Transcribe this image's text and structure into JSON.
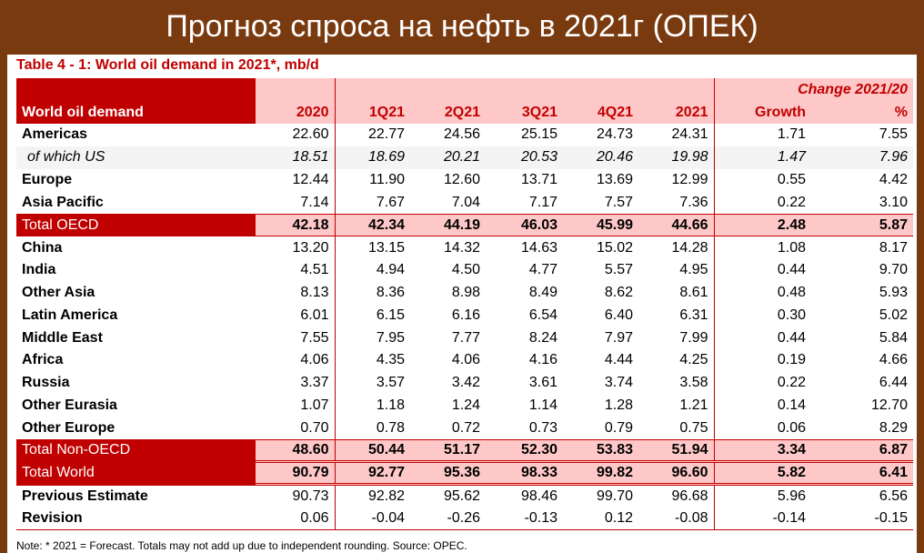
{
  "banner": {
    "title": "Прогноз спроса на нефть в 2021г (ОПЕК)"
  },
  "table_title": "Table 4 - 1: World oil demand in 2021*, mb/d",
  "header": {
    "row_label": "World oil demand",
    "change_label": "Change 2021/20",
    "columns": [
      "2020",
      "1Q21",
      "2Q21",
      "3Q21",
      "4Q21",
      "2021",
      "Growth",
      "%"
    ]
  },
  "rows": [
    {
      "label": "Americas",
      "values": [
        "22.60",
        "22.77",
        "24.56",
        "25.15",
        "24.73",
        "24.31",
        "1.71",
        "7.55"
      ]
    },
    {
      "label": "of which US",
      "values": [
        "18.51",
        "18.69",
        "20.21",
        "20.53",
        "20.46",
        "19.98",
        "1.47",
        "7.96"
      ]
    },
    {
      "label": "Europe",
      "values": [
        "12.44",
        "11.90",
        "12.60",
        "13.71",
        "13.69",
        "12.99",
        "0.55",
        "4.42"
      ]
    },
    {
      "label": "Asia Pacific",
      "values": [
        "7.14",
        "7.67",
        "7.04",
        "7.17",
        "7.57",
        "7.36",
        "0.22",
        "3.10"
      ]
    },
    {
      "label": "Total OECD",
      "values": [
        "42.18",
        "42.34",
        "44.19",
        "46.03",
        "45.99",
        "44.66",
        "2.48",
        "5.87"
      ]
    },
    {
      "label": "China",
      "values": [
        "13.20",
        "13.15",
        "14.32",
        "14.63",
        "15.02",
        "14.28",
        "1.08",
        "8.17"
      ]
    },
    {
      "label": "India",
      "values": [
        "4.51",
        "4.94",
        "4.50",
        "4.77",
        "5.57",
        "4.95",
        "0.44",
        "9.70"
      ]
    },
    {
      "label": "Other Asia",
      "values": [
        "8.13",
        "8.36",
        "8.98",
        "8.49",
        "8.62",
        "8.61",
        "0.48",
        "5.93"
      ]
    },
    {
      "label": "Latin America",
      "values": [
        "6.01",
        "6.15",
        "6.16",
        "6.54",
        "6.40",
        "6.31",
        "0.30",
        "5.02"
      ]
    },
    {
      "label": "Middle East",
      "values": [
        "7.55",
        "7.95",
        "7.77",
        "8.24",
        "7.97",
        "7.99",
        "0.44",
        "5.84"
      ]
    },
    {
      "label": "Africa",
      "values": [
        "4.06",
        "4.35",
        "4.06",
        "4.16",
        "4.44",
        "4.25",
        "0.19",
        "4.66"
      ]
    },
    {
      "label": "Russia",
      "values": [
        "3.37",
        "3.57",
        "3.42",
        "3.61",
        "3.74",
        "3.58",
        "0.22",
        "6.44"
      ]
    },
    {
      "label": "Other Eurasia",
      "values": [
        "1.07",
        "1.18",
        "1.24",
        "1.14",
        "1.28",
        "1.21",
        "0.14",
        "12.70"
      ]
    },
    {
      "label": "Other Europe",
      "values": [
        "0.70",
        "0.78",
        "0.72",
        "0.73",
        "0.79",
        "0.75",
        "0.06",
        "8.29"
      ]
    },
    {
      "label": "Total Non-OECD",
      "values": [
        "48.60",
        "50.44",
        "51.17",
        "52.30",
        "53.83",
        "51.94",
        "3.34",
        "6.87"
      ]
    },
    {
      "label": "Total World",
      "values": [
        "90.79",
        "92.77",
        "95.36",
        "98.33",
        "99.82",
        "96.60",
        "5.82",
        "6.41"
      ]
    },
    {
      "label": "Previous Estimate",
      "values": [
        "90.73",
        "92.82",
        "95.62",
        "98.46",
        "99.70",
        "96.68",
        "5.96",
        "6.56"
      ]
    },
    {
      "label": "Revision",
      "values": [
        "0.06",
        "-0.04",
        "-0.26",
        "-0.13",
        "0.12",
        "-0.08",
        "-0.14",
        "-0.15"
      ]
    }
  ],
  "footnote": "Note: * 2021 = Forecast. Totals may not add up due to independent rounding. Source: OPEC.",
  "colors": {
    "banner_bg": "#7a3a10",
    "accent_red": "#c00000",
    "highlight_pink": "#ffc8c8"
  }
}
